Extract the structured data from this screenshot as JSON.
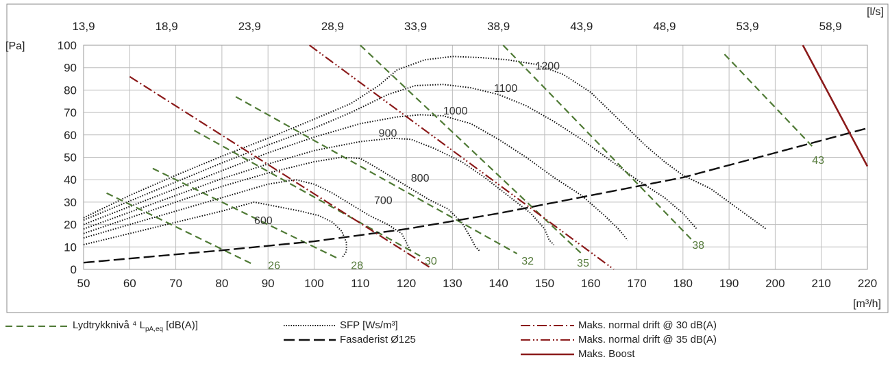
{
  "chart_data": {
    "type": "line",
    "x_label_unit": "[m³/h]",
    "y_label_unit": "[Pa]",
    "x2_label_unit": "[l/s]",
    "xlim": [
      50,
      220
    ],
    "ylim": [
      0,
      100
    ],
    "x_ticks": [
      "50",
      "60",
      "70",
      "80",
      "90",
      "100",
      "110",
      "120",
      "130",
      "140",
      "150",
      "160",
      "170",
      "180",
      "190",
      "200",
      "210",
      "220"
    ],
    "y_ticks": [
      "0",
      "10",
      "20",
      "30",
      "40",
      "50",
      "60",
      "70",
      "80",
      "90",
      "100"
    ],
    "x2_ticks": [
      "13,9",
      "18,9",
      "23,9",
      "28,9",
      "33,9",
      "38,9",
      "43,9",
      "48,9",
      "53,9",
      "58,9"
    ],
    "grid": true,
    "legend_placement": "bottom",
    "colors": {
      "sound": "#4f7a35",
      "sfp": "#111111",
      "facade": "#111111",
      "max": "#8b1a1a",
      "grid": "#bdbdbd"
    },
    "sfp_curves": [
      {
        "label": "600",
        "label_pos": [
          87,
          22
        ],
        "points": [
          [
            50,
            11
          ],
          [
            60,
            16
          ],
          [
            70,
            21
          ],
          [
            80,
            26
          ],
          [
            87,
            30
          ],
          [
            92,
            28
          ],
          [
            97,
            26
          ],
          [
            101,
            24
          ],
          [
            104,
            21
          ],
          [
            106,
            17
          ],
          [
            107,
            12
          ],
          [
            107,
            8
          ],
          [
            106,
            5
          ]
        ]
      },
      {
        "label": "700",
        "label_pos": [
          113,
          31
        ],
        "points": [
          [
            50,
            14
          ],
          [
            60,
            20
          ],
          [
            70,
            26
          ],
          [
            80,
            32
          ],
          [
            90,
            38
          ],
          [
            96,
            40
          ],
          [
            100,
            38
          ],
          [
            104,
            34
          ],
          [
            108,
            29
          ],
          [
            112,
            24
          ],
          [
            116,
            20
          ],
          [
            119,
            16
          ],
          [
            120,
            12
          ],
          [
            121,
            8
          ]
        ]
      },
      {
        "label": "800",
        "label_pos": [
          121,
          41
        ],
        "points": [
          [
            50,
            16
          ],
          [
            60,
            23
          ],
          [
            70,
            30
          ],
          [
            80,
            37
          ],
          [
            90,
            43
          ],
          [
            100,
            48
          ],
          [
            106,
            50
          ],
          [
            110,
            49.5
          ],
          [
            113,
            46
          ],
          [
            117,
            41
          ],
          [
            121,
            36
          ],
          [
            125,
            31
          ],
          [
            129,
            27
          ],
          [
            132,
            21
          ],
          [
            134,
            14
          ],
          [
            135,
            10
          ],
          [
            136,
            8
          ]
        ]
      },
      {
        "label": "900",
        "label_pos": [
          114,
          61
        ],
        "points": [
          [
            50,
            18
          ],
          [
            60,
            25.5
          ],
          [
            70,
            33
          ],
          [
            80,
            40.5
          ],
          [
            90,
            47
          ],
          [
            100,
            53
          ],
          [
            110,
            57
          ],
          [
            117,
            58.5
          ],
          [
            121,
            58
          ],
          [
            126,
            54
          ],
          [
            132,
            48
          ],
          [
            137,
            41
          ],
          [
            142,
            33
          ],
          [
            147,
            25
          ],
          [
            150,
            18
          ],
          [
            151,
            13
          ],
          [
            152,
            11
          ]
        ]
      },
      {
        "label": "1000",
        "label_pos": [
          128,
          71
        ],
        "points": [
          [
            50,
            20
          ],
          [
            60,
            28
          ],
          [
            70,
            36
          ],
          [
            80,
            44
          ],
          [
            90,
            52
          ],
          [
            100,
            59
          ],
          [
            110,
            65
          ],
          [
            118,
            68
          ],
          [
            123,
            69
          ],
          [
            128,
            68.5
          ],
          [
            134,
            65
          ],
          [
            140,
            58
          ],
          [
            146,
            50
          ],
          [
            152,
            41
          ],
          [
            158,
            33
          ],
          [
            163,
            24
          ],
          [
            166,
            18
          ],
          [
            168,
            13
          ]
        ]
      },
      {
        "label": "1100",
        "label_pos": [
          139,
          81
        ],
        "points": [
          [
            50,
            22
          ],
          [
            60,
            30.5
          ],
          [
            70,
            39
          ],
          [
            80,
            47.5
          ],
          [
            90,
            55.5
          ],
          [
            100,
            63
          ],
          [
            108,
            70
          ],
          [
            116,
            78
          ],
          [
            122,
            82
          ],
          [
            128,
            82.5
          ],
          [
            134,
            81
          ],
          [
            140,
            78
          ],
          [
            146,
            73
          ],
          [
            152,
            66
          ],
          [
            158,
            58
          ],
          [
            164,
            49
          ],
          [
            170,
            40
          ],
          [
            176,
            32
          ],
          [
            180,
            25
          ],
          [
            183,
            18
          ]
        ]
      },
      {
        "label": "1200",
        "label_pos": [
          148,
          91
        ],
        "points": [
          [
            50,
            23
          ],
          [
            60,
            33
          ],
          [
            70,
            42
          ],
          [
            80,
            50.5
          ],
          [
            90,
            58.5
          ],
          [
            100,
            67
          ],
          [
            108,
            74
          ],
          [
            114,
            82
          ],
          [
            118,
            89
          ],
          [
            124,
            93.5
          ],
          [
            130,
            95
          ],
          [
            136,
            94.5
          ],
          [
            142,
            93.5
          ],
          [
            148,
            91.5
          ],
          [
            154,
            87
          ],
          [
            160,
            79
          ],
          [
            164,
            71
          ],
          [
            168,
            63
          ],
          [
            172,
            55
          ],
          [
            176,
            48
          ],
          [
            180,
            42
          ],
          [
            186,
            36
          ],
          [
            192,
            27
          ],
          [
            198,
            18
          ]
        ]
      }
    ],
    "sound_lines": [
      {
        "label": "26",
        "label_pos": [
          90,
          2
        ],
        "points": [
          [
            55,
            34
          ],
          [
            87,
            2
          ]
        ]
      },
      {
        "label": "28",
        "label_pos": [
          108,
          2
        ],
        "points": [
          [
            65,
            45
          ],
          [
            105,
            5
          ]
        ]
      },
      {
        "label": "30",
        "label_pos": [
          124,
          4
        ],
        "points": [
          [
            74,
            62
          ],
          [
            123,
            6
          ]
        ]
      },
      {
        "label": "32",
        "label_pos": [
          145,
          4
        ],
        "points": [
          [
            83,
            77
          ],
          [
            144,
            7
          ]
        ]
      },
      {
        "label": "35",
        "label_pos": [
          157,
          3
        ],
        "points": [
          [
            110,
            100
          ],
          [
            158,
            7
          ]
        ]
      },
      {
        "label": "38",
        "label_pos": [
          182,
          11
        ],
        "points": [
          [
            141,
            100
          ],
          [
            182,
            13
          ]
        ]
      },
      {
        "label": "43",
        "label_pos": [
          208,
          49
        ],
        "points": [
          [
            189,
            96
          ],
          [
            208,
            55
          ]
        ]
      }
    ],
    "facade_line": {
      "points": [
        [
          50,
          3
        ],
        [
          80,
          8.5
        ],
        [
          100,
          12.5
        ],
        [
          120,
          18
        ],
        [
          140,
          25
        ],
        [
          160,
          33
        ],
        [
          180,
          41
        ],
        [
          200,
          52
        ],
        [
          220,
          63
        ]
      ]
    },
    "max_30": {
      "points": [
        [
          60,
          86
        ],
        [
          125,
          1
        ]
      ]
    },
    "max_35": {
      "points": [
        [
          99,
          100
        ],
        [
          165,
          0
        ]
      ]
    },
    "max_boost": {
      "points": [
        [
          206,
          100
        ],
        [
          220,
          46
        ]
      ]
    },
    "legend": {
      "sound_label": "Lydtrykknivå ⁴ L",
      "sound_sub": "pA,eq",
      "sound_unit": " [dB(A)]",
      "sfp_label": "SFP [Ws/m³]",
      "facade_label": "Fasaderist Ø125",
      "max30_label": "Maks. normal drift @ 30 dB(A)",
      "max35_label": "Maks. normal drift @ 35 dB(A)",
      "boost_label": "Maks. Boost"
    }
  }
}
